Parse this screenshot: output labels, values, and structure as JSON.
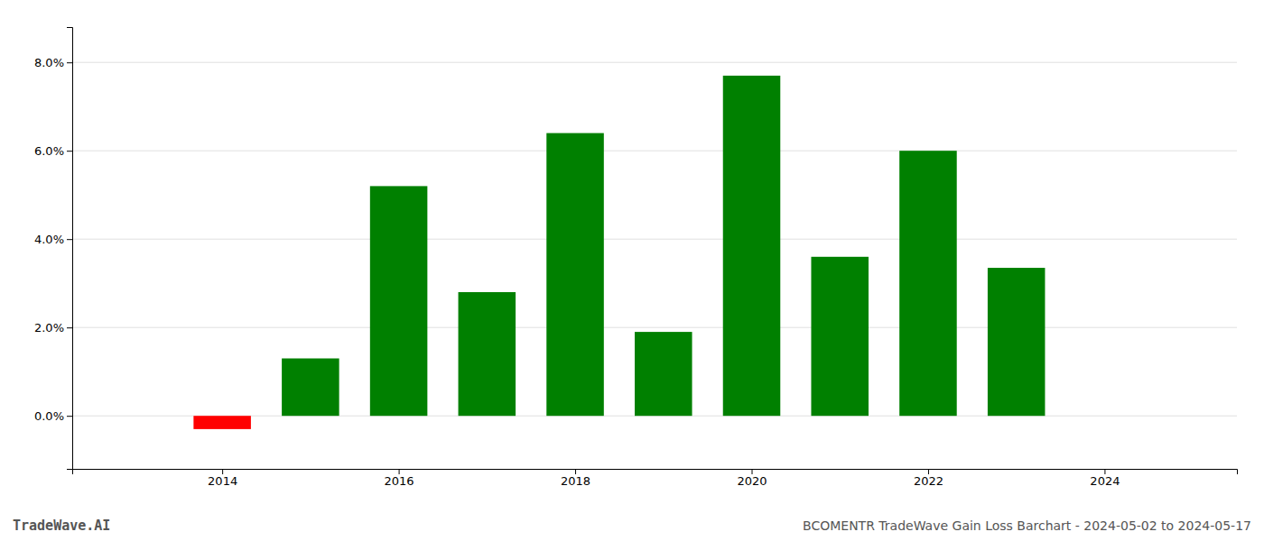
{
  "chart_data": {
    "type": "bar",
    "title": "BCOMENTR TradeWave Gain Loss Barchart - 2024-05-02 to 2024-05-17",
    "annotations": [
      "TradeWave.AI"
    ],
    "x": [
      2014,
      2015,
      2016,
      2017,
      2018,
      2019,
      2020,
      2021,
      2022,
      2023
    ],
    "values": [
      -0.003,
      0.013,
      0.052,
      0.028,
      0.064,
      0.019,
      0.077,
      0.036,
      0.06,
      0.0335
    ],
    "colors": [
      "#ff0000",
      "#008000",
      "#008000",
      "#008000",
      "#008000",
      "#008000",
      "#008000",
      "#008000",
      "#008000",
      "#008000"
    ],
    "xlim": [
      2012.3,
      2025.5
    ],
    "xticks": [
      2014,
      2016,
      2018,
      2020,
      2022,
      2024
    ],
    "ylim": [
      -0.012,
      0.088
    ],
    "yticks": [
      {
        "value": 0.0,
        "label": "0.0%"
      },
      {
        "value": 0.02,
        "label": "2.0%"
      },
      {
        "value": 0.04,
        "label": "4.0%"
      },
      {
        "value": 0.06,
        "label": "6.0%"
      },
      {
        "value": 0.08,
        "label": "8.0%"
      }
    ],
    "grid": true
  }
}
